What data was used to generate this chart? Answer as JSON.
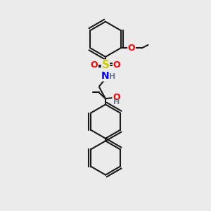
{
  "bg_color": "#ebebeb",
  "line_color": "#1a1a1a",
  "bond_width": 1.5,
  "atom_colors": {
    "S": "#cccc00",
    "N": "#0000ff",
    "O": "#ff0000",
    "H": "#708090",
    "C": "#1a1a1a"
  },
  "figsize": [
    3.0,
    3.0
  ],
  "dpi": 100
}
